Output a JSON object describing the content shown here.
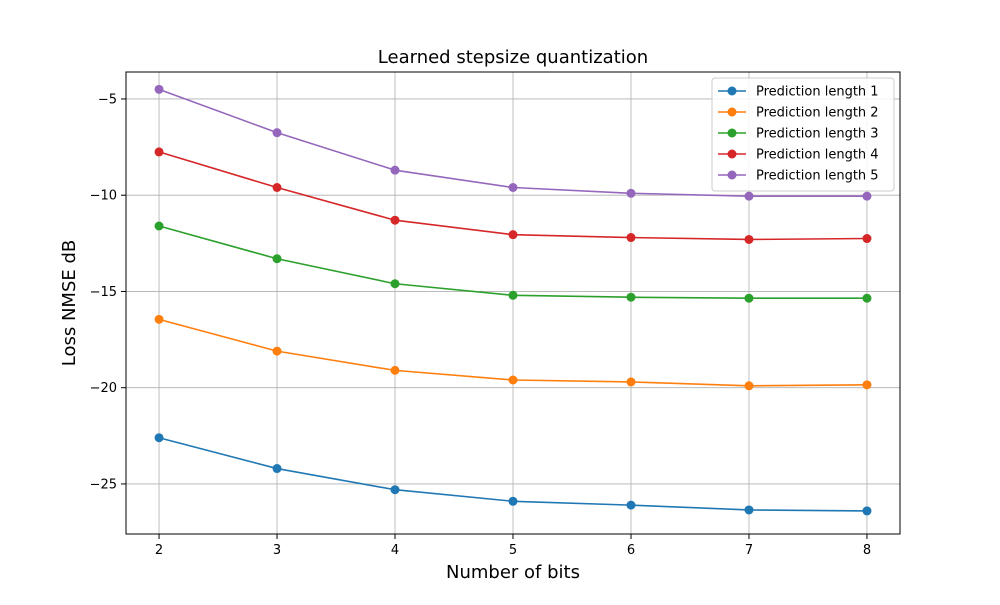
{
  "chart_data": {
    "type": "line",
    "title": "Learned stepsize quantization",
    "xlabel": "Number of bits",
    "ylabel": "Loss NMSE dB",
    "x": [
      2,
      3,
      4,
      5,
      6,
      7,
      8
    ],
    "xlim": [
      1.72,
      8.28
    ],
    "ylim": [
      -27.6,
      -3.6
    ],
    "xticks": [
      2,
      3,
      4,
      5,
      6,
      7,
      8
    ],
    "yticks": [
      -25,
      -20,
      -15,
      -10,
      -5
    ],
    "ytick_labels": [
      "−25",
      "−20",
      "−15",
      "−10",
      "−5"
    ],
    "grid": true,
    "legend_position": "top-right",
    "series": [
      {
        "name": "Prediction length 1",
        "color": "#1f77b4",
        "values": [
          -22.6,
          -24.2,
          -25.3,
          -25.9,
          -26.1,
          -26.35,
          -26.4
        ]
      },
      {
        "name": "Prediction length 2",
        "color": "#ff7f0e",
        "values": [
          -16.45,
          -18.1,
          -19.1,
          -19.6,
          -19.7,
          -19.9,
          -19.85
        ]
      },
      {
        "name": "Prediction length 3",
        "color": "#2ca02c",
        "values": [
          -11.6,
          -13.3,
          -14.6,
          -15.2,
          -15.3,
          -15.35,
          -15.35
        ]
      },
      {
        "name": "Prediction length 4",
        "color": "#d62728",
        "values": [
          -7.75,
          -9.6,
          -11.3,
          -12.05,
          -12.2,
          -12.3,
          -12.25
        ]
      },
      {
        "name": "Prediction length 5",
        "color": "#9467bd",
        "values": [
          -4.5,
          -6.75,
          -8.7,
          -9.6,
          -9.9,
          -10.05,
          -10.05
        ]
      }
    ]
  }
}
